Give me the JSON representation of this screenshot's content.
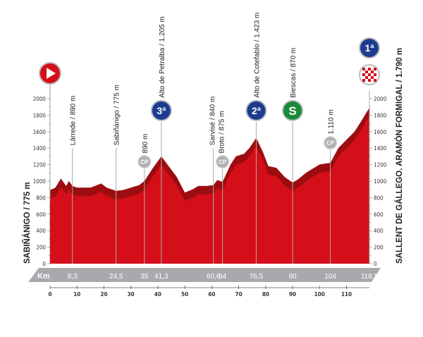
{
  "chart_data": {
    "type": "area",
    "xlim": [
      0,
      118.5
    ],
    "ylim": [
      0,
      2000
    ],
    "x_ticks": [
      0,
      10,
      20,
      30,
      40,
      50,
      60,
      70,
      80,
      90,
      100,
      110
    ],
    "y_ticks": [
      0,
      200,
      400,
      600,
      800,
      1000,
      1200,
      1400,
      1600,
      1800,
      2000
    ],
    "band_label": "Km",
    "start_label": "SABIÑÁNIGO / 775 m",
    "finish_label": "SALLENT DE GÁLLEGO. ARAMÓN FORMIGAL / 1.790 m",
    "profile": {
      "km": [
        0,
        2,
        4,
        6,
        7,
        8.3,
        10,
        15,
        19,
        21,
        24.5,
        27,
        30,
        33,
        35,
        38,
        41.3,
        44,
        47,
        50,
        53,
        55,
        58,
        60.6,
        62,
        64,
        67,
        69,
        72,
        74,
        76.5,
        79,
        81,
        84,
        87,
        90,
        92,
        95,
        98,
        100,
        104,
        107,
        110,
        113,
        115,
        118.5
      ],
      "elevation": [
        790,
        820,
        930,
        840,
        900,
        840,
        820,
        820,
        870,
        820,
        780,
        790,
        820,
        850,
        900,
        1050,
        1200,
        1080,
        950,
        760,
        800,
        840,
        840,
        850,
        910,
        890,
        1100,
        1200,
        1230,
        1300,
        1423,
        1250,
        1080,
        1060,
        950,
        880,
        920,
        1000,
        1060,
        1100,
        1120,
        1300,
        1400,
        1500,
        1600,
        1790
      ]
    },
    "points": [
      {
        "km_label": "8,3",
        "km": 8.3,
        "name": "Lárrede / 890 m",
        "icon": "none",
        "top": 1400
      },
      {
        "km_label": "24,5",
        "km": 24.5,
        "name": "Sabiñánigo / 775 m",
        "icon": "none",
        "top": 1400
      },
      {
        "km_label": "35",
        "km": 35,
        "name": "890 m",
        "icon": "cp-icon",
        "badge": "CP",
        "top": 1150
      },
      {
        "km_label": "41,3",
        "km": 41.3,
        "name": "Alto de Petralba / 1.205 m",
        "icon": "category-3-climb-icon",
        "badge": "3ª",
        "top": 1720
      },
      {
        "km_label": "60,6",
        "km": 60.6,
        "name": "Sarvisé / 840 m",
        "icon": "none",
        "top": 1400
      },
      {
        "km_label": "64",
        "km": 64,
        "name": "Broto / 875 m",
        "icon": "cp-icon",
        "badge": "CP",
        "top": 1150
      },
      {
        "km_label": "76,5",
        "km": 76.5,
        "name": "Alto de Cotefablo / 1.423 m",
        "icon": "category-2-climb-icon",
        "badge": "2ª",
        "top": 1720
      },
      {
        "km_label": "90",
        "km": 90,
        "name": "Biescas / 870 m",
        "icon": "sprint-icon",
        "badge": "S",
        "top": 1720
      },
      {
        "km_label": "104",
        "km": 104,
        "name": "1.110 m",
        "icon": "cp-icon",
        "badge": "CP",
        "top": 1380
      },
      {
        "km_label": "118,5",
        "km": 118.5,
        "name": "",
        "icon": "finish-icon",
        "badge": "1ª",
        "top": 2100
      }
    ],
    "colors": {
      "profile": "#d50f19",
      "edge": "#9c0d10",
      "band": "#a7a9ac",
      "cat": "#1d3c8f",
      "sprint": "#1a8a3a",
      "cp": "#9a9a9a",
      "start": "#d50f19"
    }
  }
}
